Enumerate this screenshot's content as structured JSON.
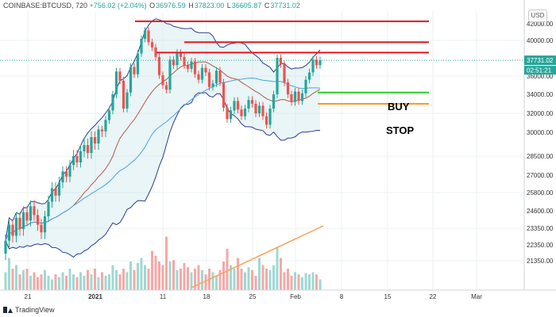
{
  "header": {
    "symbol": "COINBASE:BTCUSD, 720",
    "change": "+756.02 (+2.04%)",
    "open": "36976.59",
    "high": "37823.00",
    "low": "36605.87",
    "close": "37731.02"
  },
  "currency_label": "USD",
  "last_price_label": "37731.02",
  "countdown_label": "02:51:21",
  "footer_brand": "TradingView",
  "colors": {
    "up": "#26a69a",
    "down": "#ef5350",
    "level": "#e3171d",
    "buy": "#1fd31f",
    "stop": "#ff9a1c",
    "trend": "#f7a35c",
    "band": "#bfe3e6"
  },
  "chart_data": {
    "type": "candlestick",
    "y_ticks": [
      "42000.00",
      "40000.00",
      "38000.00",
      "36000.00",
      "34000.00",
      "32000.00",
      "30000.00",
      "28500.00",
      "27000.00",
      "25800.00",
      "24600.00",
      "23350.00",
      "22350.00",
      "21350.00"
    ],
    "x_ticks": [
      "21",
      "2021",
      "11",
      "18",
      "25",
      "Feb",
      "8",
      "15",
      "22",
      "Mar"
    ],
    "candles": [
      [
        21800,
        22600
      ],
      [
        22600,
        23600
      ],
      [
        23600,
        22900
      ],
      [
        22900,
        24100
      ],
      [
        24100,
        23300
      ],
      [
        23300,
        24500
      ],
      [
        24500,
        23900
      ],
      [
        23900,
        24900
      ],
      [
        24900,
        24300
      ],
      [
        24300,
        23600
      ],
      [
        23600,
        23100
      ],
      [
        23100,
        24200
      ],
      [
        24200,
        25200
      ],
      [
        25200,
        26100
      ],
      [
        26100,
        25600
      ],
      [
        25600,
        26500
      ],
      [
        26500,
        27300
      ],
      [
        27300,
        26900
      ],
      [
        26900,
        27800
      ],
      [
        27800,
        28500
      ],
      [
        28500,
        28000
      ],
      [
        28000,
        28800
      ],
      [
        28800,
        29200
      ],
      [
        29200,
        28700
      ],
      [
        28700,
        29700
      ],
      [
        29700,
        29300
      ],
      [
        29300,
        30300
      ],
      [
        30300,
        30100
      ],
      [
        30100,
        31300
      ],
      [
        31300,
        32300
      ],
      [
        32300,
        34000
      ],
      [
        34000,
        36500
      ],
      [
        36500,
        35500
      ],
      [
        35500,
        32500
      ],
      [
        32500,
        34200
      ],
      [
        34200,
        37000
      ],
      [
        37000,
        36200
      ],
      [
        36200,
        38500
      ],
      [
        38500,
        40200
      ],
      [
        40200,
        41200
      ],
      [
        41200,
        39800
      ],
      [
        39800,
        39200
      ],
      [
        39200,
        38100
      ],
      [
        38100,
        36100
      ],
      [
        36100,
        35000
      ],
      [
        35000,
        34500
      ],
      [
        34500,
        37800
      ],
      [
        37800,
        37200
      ],
      [
        37200,
        38600
      ],
      [
        38600,
        38100
      ],
      [
        38100,
        37200
      ],
      [
        37200,
        36800
      ],
      [
        36800,
        37600
      ],
      [
        37600,
        36200
      ],
      [
        36200,
        35600
      ],
      [
        35600,
        36900
      ],
      [
        36900,
        36400
      ],
      [
        36400,
        34800
      ],
      [
        34800,
        35200
      ],
      [
        35200,
        36600
      ],
      [
        36600,
        35300
      ],
      [
        35300,
        32600
      ],
      [
        32600,
        31400
      ],
      [
        31400,
        32300
      ],
      [
        32300,
        33300
      ],
      [
        33300,
        32400
      ],
      [
        32400,
        31700
      ],
      [
        31700,
        32500
      ],
      [
        32500,
        33400
      ],
      [
        33400,
        33000
      ],
      [
        33000,
        32000
      ],
      [
        32000,
        32800
      ],
      [
        32800,
        31700
      ],
      [
        31700,
        30800
      ],
      [
        30800,
        32500
      ],
      [
        32500,
        34000
      ],
      [
        34000,
        38000
      ],
      [
        38000,
        37300
      ],
      [
        37300,
        35300
      ],
      [
        35300,
        34000
      ],
      [
        34000,
        33200
      ],
      [
        33200,
        34300
      ],
      [
        34300,
        33300
      ],
      [
        33300,
        34100
      ],
      [
        34100,
        35600
      ],
      [
        35600,
        36400
      ],
      [
        36400,
        37800
      ],
      [
        37800,
        37200
      ],
      [
        37200,
        37731
      ]
    ],
    "volumes": [
      25,
      45,
      30,
      35,
      22,
      28,
      30,
      20,
      25,
      18,
      22,
      28,
      20,
      15,
      22,
      18,
      25,
      20,
      30,
      22,
      18,
      25,
      20,
      28,
      22,
      30,
      18,
      25,
      20,
      22,
      35,
      28,
      22,
      30,
      25,
      40,
      28,
      38,
      45,
      35,
      30,
      55,
      48,
      40,
      35,
      75,
      40,
      42,
      28,
      30,
      38,
      32,
      25,
      30,
      35,
      28,
      22,
      30,
      25,
      20,
      28,
      40,
      58,
      35,
      30,
      45,
      30,
      25,
      32,
      28,
      20,
      45,
      35,
      30,
      28,
      35,
      60,
      45,
      25,
      30,
      20,
      25,
      22,
      18,
      24,
      22,
      25,
      22,
      15
    ],
    "levels": {
      "resistance": [
        42300,
        39800,
        38600
      ],
      "buy": 34200,
      "stop": 33000
    }
  },
  "annotations": {
    "buy": "BUY",
    "stop": "STOP"
  }
}
